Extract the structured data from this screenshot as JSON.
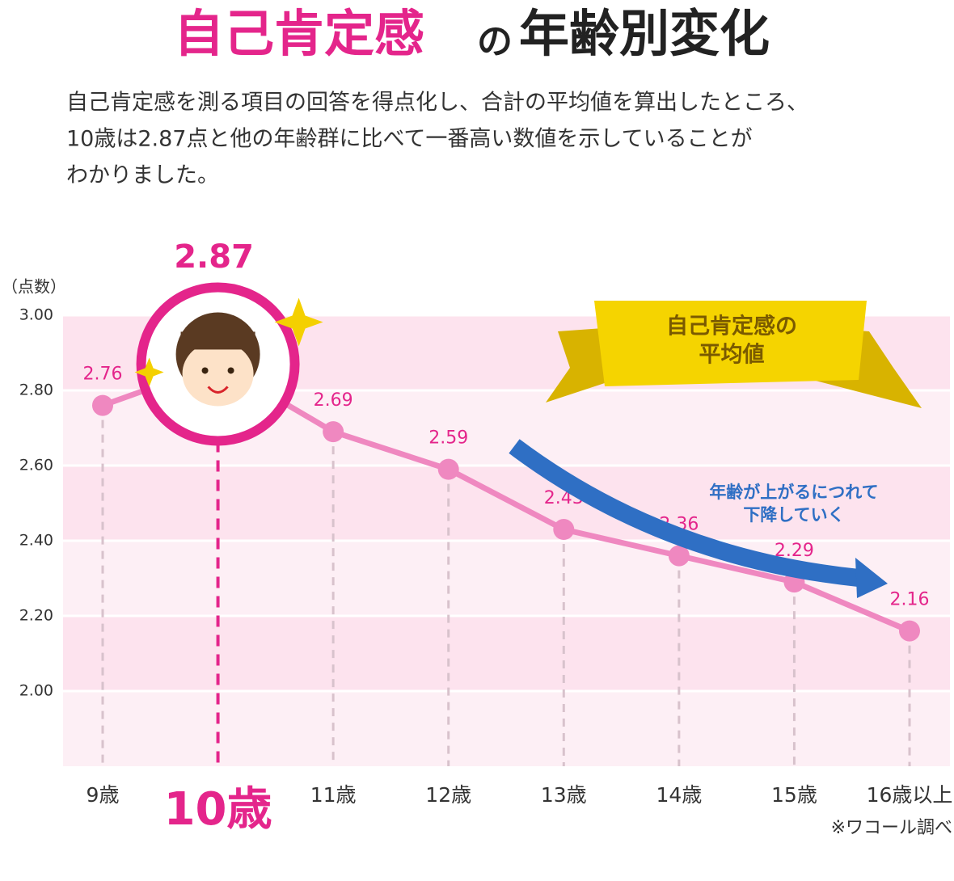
{
  "chart_data": {
    "type": "line",
    "title": {
      "highlight": "自己肯定感",
      "connector": "の",
      "rest": "年齢別変化"
    },
    "description": [
      "自己肯定感を測る項目の回答を得点化し、合計の平均値を算出したところ、",
      "10歳は2.87点と他の年齢群に比べて一番高い数値を示していることが",
      "わかりました。"
    ],
    "y_label": "（点数）",
    "categories": [
      "9歳",
      "10歳",
      "11歳",
      "12歳",
      "13歳",
      "14歳",
      "15歳",
      "16歳以上"
    ],
    "values": [
      2.76,
      2.87,
      2.69,
      2.59,
      2.43,
      2.36,
      2.29,
      2.16
    ],
    "color": "#ef88c0",
    "highlight_index": 1,
    "highlight_color": "#e4258b",
    "ylim": [
      1.8,
      3.0
    ],
    "yticks": [
      {
        "value": 2,
        "label": "2.00"
      },
      {
        "value": 2.2,
        "label": "2.20"
      },
      {
        "value": 2.4,
        "label": "2.40"
      },
      {
        "value": 2.6,
        "label": "2.60"
      },
      {
        "value": 2.8,
        "label": "2.80"
      },
      {
        "value": 3,
        "label": "3.00"
      }
    ],
    "grid": true,
    "banner": [
      "自己肯定感の",
      "平均値"
    ],
    "trend_annotation": [
      "年齢が上がるにつれて",
      "下降していく"
    ],
    "source": "※ワコール調べ"
  }
}
